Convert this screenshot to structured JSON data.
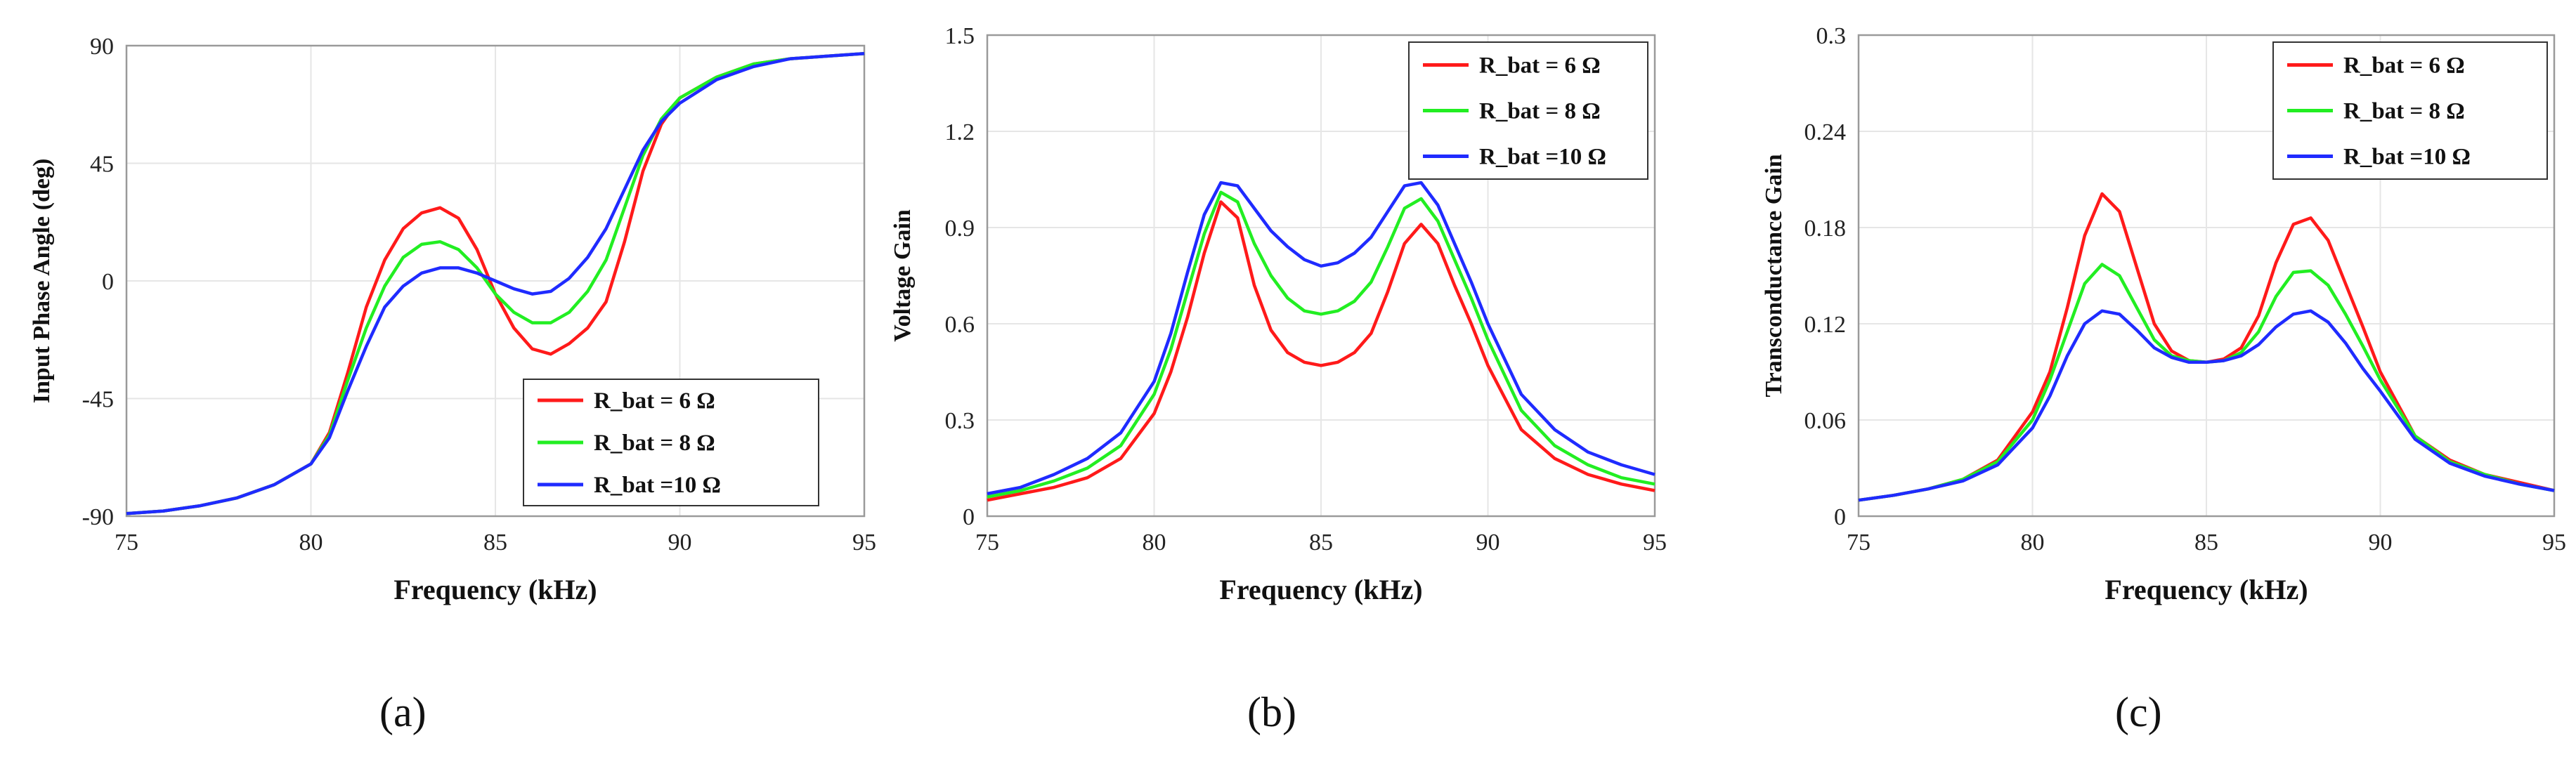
{
  "captions": [
    "(a)",
    "(b)",
    "(c)"
  ],
  "colors": {
    "s6": "#ff1a1a",
    "s8": "#22ee22",
    "s10": "#1f2bff",
    "grid": "#e6e6e6",
    "axis": "#9a9a9a"
  },
  "chart_data": [
    {
      "type": "line",
      "xlabel": "Frequency (kHz)",
      "ylabel": "Input Phase Angle (deg)",
      "xlim": [
        75,
        95
      ],
      "ylim": [
        -90,
        90
      ],
      "xticks": [
        75,
        80,
        85,
        90,
        95
      ],
      "yticks": [
        "-90",
        "-45",
        "0",
        "45",
        "90"
      ],
      "legend_position": "bottom-right",
      "series": [
        {
          "name": "R_bat = 6 Ω",
          "color_key": "s6",
          "x": [
            75,
            76,
            77,
            78,
            79,
            80,
            80.5,
            81,
            81.5,
            82,
            82.5,
            83,
            83.5,
            84,
            84.5,
            85,
            85.5,
            86,
            86.5,
            87,
            87.5,
            88,
            88.5,
            89,
            89.5,
            90,
            91,
            92,
            93,
            94,
            95
          ],
          "y": [
            -89,
            -88,
            -86,
            -83,
            -78,
            -70,
            -58,
            -35,
            -10,
            8,
            20,
            26,
            28,
            24,
            12,
            -5,
            -18,
            -26,
            -28,
            -24,
            -18,
            -8,
            15,
            42,
            60,
            70,
            78,
            83,
            85,
            86,
            87
          ]
        },
        {
          "name": "R_bat = 8 Ω",
          "color_key": "s8",
          "x": [
            75,
            76,
            77,
            78,
            79,
            80,
            80.5,
            81,
            81.5,
            82,
            82.5,
            83,
            83.5,
            84,
            84.5,
            85,
            85.5,
            86,
            86.5,
            87,
            87.5,
            88,
            88.5,
            89,
            89.5,
            90,
            91,
            92,
            93,
            94,
            95
          ],
          "y": [
            -89,
            -88,
            -86,
            -83,
            -78,
            -70,
            -59,
            -38,
            -18,
            -2,
            9,
            14,
            15,
            12,
            5,
            -5,
            -12,
            -16,
            -16,
            -12,
            -4,
            8,
            28,
            48,
            62,
            70,
            78,
            83,
            85,
            86,
            87
          ]
        },
        {
          "name": "R_bat =10 Ω",
          "color_key": "s10",
          "x": [
            75,
            76,
            77,
            78,
            79,
            80,
            80.5,
            81,
            81.5,
            82,
            82.5,
            83,
            83.5,
            84,
            84.5,
            85,
            85.5,
            86,
            86.5,
            87,
            87.5,
            88,
            88.5,
            89,
            89.5,
            90,
            91,
            92,
            93,
            94,
            95
          ],
          "y": [
            -89,
            -88,
            -86,
            -83,
            -78,
            -70,
            -60,
            -42,
            -25,
            -10,
            -2,
            3,
            5,
            5,
            3,
            0,
            -3,
            -5,
            -4,
            1,
            9,
            20,
            35,
            50,
            61,
            68,
            77,
            82,
            85,
            86,
            87
          ]
        }
      ]
    },
    {
      "type": "line",
      "xlabel": "Frequency (kHz)",
      "ylabel": "Voltage Gain",
      "xlim": [
        75,
        95
      ],
      "ylim": [
        0,
        1.5
      ],
      "xticks": [
        75,
        80,
        85,
        90,
        95
      ],
      "yticks": [
        "0",
        "0.3",
        "0.6",
        "0.9",
        "1.2",
        "1.5"
      ],
      "legend_position": "top-right",
      "series": [
        {
          "name": "R_bat = 6 Ω",
          "color_key": "s6",
          "x": [
            75,
            76,
            77,
            78,
            79,
            80,
            80.5,
            81,
            81.5,
            82,
            82.5,
            83,
            83.5,
            84,
            84.5,
            85,
            85.5,
            86,
            86.5,
            87,
            87.5,
            88,
            88.5,
            89,
            89.5,
            90,
            91,
            92,
            93,
            94,
            95
          ],
          "y": [
            0.05,
            0.07,
            0.09,
            0.12,
            0.18,
            0.32,
            0.45,
            0.62,
            0.82,
            0.98,
            0.93,
            0.72,
            0.58,
            0.51,
            0.48,
            0.47,
            0.48,
            0.51,
            0.57,
            0.7,
            0.85,
            0.91,
            0.85,
            0.72,
            0.6,
            0.47,
            0.27,
            0.18,
            0.13,
            0.1,
            0.08
          ]
        },
        {
          "name": "R_bat = 8 Ω",
          "color_key": "s8",
          "x": [
            75,
            76,
            77,
            78,
            79,
            80,
            80.5,
            81,
            81.5,
            82,
            82.5,
            83,
            83.5,
            84,
            84.5,
            85,
            85.5,
            86,
            86.5,
            87,
            87.5,
            88,
            88.5,
            89,
            89.5,
            90,
            91,
            92,
            93,
            94,
            95
          ],
          "y": [
            0.06,
            0.08,
            0.11,
            0.15,
            0.22,
            0.38,
            0.52,
            0.7,
            0.88,
            1.01,
            0.98,
            0.85,
            0.75,
            0.68,
            0.64,
            0.63,
            0.64,
            0.67,
            0.73,
            0.84,
            0.96,
            0.99,
            0.92,
            0.8,
            0.68,
            0.55,
            0.33,
            0.22,
            0.16,
            0.12,
            0.1
          ]
        },
        {
          "name": "R_bat =10 Ω",
          "color_key": "s10",
          "x": [
            75,
            76,
            77,
            78,
            79,
            80,
            80.5,
            81,
            81.5,
            82,
            82.5,
            83,
            83.5,
            84,
            84.5,
            85,
            85.5,
            86,
            86.5,
            87,
            87.5,
            88,
            88.5,
            89,
            89.5,
            90,
            91,
            92,
            93,
            94,
            95
          ],
          "y": [
            0.07,
            0.09,
            0.13,
            0.18,
            0.26,
            0.42,
            0.57,
            0.76,
            0.94,
            1.04,
            1.03,
            0.96,
            0.89,
            0.84,
            0.8,
            0.78,
            0.79,
            0.82,
            0.87,
            0.95,
            1.03,
            1.04,
            0.97,
            0.85,
            0.73,
            0.6,
            0.38,
            0.27,
            0.2,
            0.16,
            0.13
          ]
        }
      ]
    },
    {
      "type": "line",
      "xlabel": "Frequency  (kHz)",
      "ylabel": "Transconductance  Gain",
      "xlim": [
        75,
        95
      ],
      "ylim": [
        0,
        0.3
      ],
      "xticks": [
        75,
        80,
        85,
        90,
        95
      ],
      "yticks": [
        "0",
        "0.06",
        "0.12",
        "0.18",
        "0.24",
        "0.3"
      ],
      "legend_position": "top-right",
      "series": [
        {
          "name": "R_bat = 6 Ω",
          "color_key": "s6",
          "x": [
            75,
            76,
            77,
            78,
            79,
            80,
            80.5,
            81,
            81.5,
            82,
            82.5,
            83,
            83.5,
            84,
            84.5,
            85,
            85.5,
            86,
            86.5,
            87,
            87.5,
            88,
            88.5,
            89,
            89.5,
            90,
            91,
            92,
            93,
            94,
            95
          ],
          "y": [
            0.01,
            0.013,
            0.017,
            0.023,
            0.035,
            0.065,
            0.09,
            0.13,
            0.175,
            0.201,
            0.19,
            0.155,
            0.12,
            0.103,
            0.097,
            0.096,
            0.098,
            0.105,
            0.125,
            0.158,
            0.182,
            0.186,
            0.172,
            0.145,
            0.118,
            0.09,
            0.05,
            0.035,
            0.026,
            0.021,
            0.016
          ]
        },
        {
          "name": "R_bat = 8 Ω",
          "color_key": "s8",
          "x": [
            75,
            76,
            77,
            78,
            79,
            80,
            80.5,
            81,
            81.5,
            82,
            82.5,
            83,
            83.5,
            84,
            84.5,
            85,
            85.5,
            86,
            86.5,
            87,
            87.5,
            88,
            88.5,
            89,
            89.5,
            90,
            91,
            92,
            93,
            94,
            95
          ],
          "y": [
            0.01,
            0.013,
            0.017,
            0.023,
            0.034,
            0.06,
            0.085,
            0.115,
            0.145,
            0.157,
            0.15,
            0.13,
            0.11,
            0.1,
            0.097,
            0.096,
            0.097,
            0.102,
            0.115,
            0.137,
            0.152,
            0.153,
            0.144,
            0.126,
            0.106,
            0.085,
            0.05,
            0.034,
            0.026,
            0.02,
            0.016
          ]
        },
        {
          "name": "R_bat =10 Ω",
          "color_key": "s10",
          "x": [
            75,
            76,
            77,
            78,
            79,
            80,
            80.5,
            81,
            81.5,
            82,
            82.5,
            83,
            83.5,
            84,
            84.5,
            85,
            85.5,
            86,
            86.5,
            87,
            87.5,
            88,
            88.5,
            89,
            89.5,
            90,
            91,
            92,
            93,
            94,
            95
          ],
          "y": [
            0.01,
            0.013,
            0.017,
            0.022,
            0.032,
            0.055,
            0.075,
            0.1,
            0.12,
            0.128,
            0.126,
            0.116,
            0.105,
            0.099,
            0.096,
            0.096,
            0.097,
            0.1,
            0.107,
            0.118,
            0.126,
            0.128,
            0.121,
            0.108,
            0.092,
            0.078,
            0.048,
            0.033,
            0.025,
            0.02,
            0.016
          ]
        }
      ]
    }
  ]
}
